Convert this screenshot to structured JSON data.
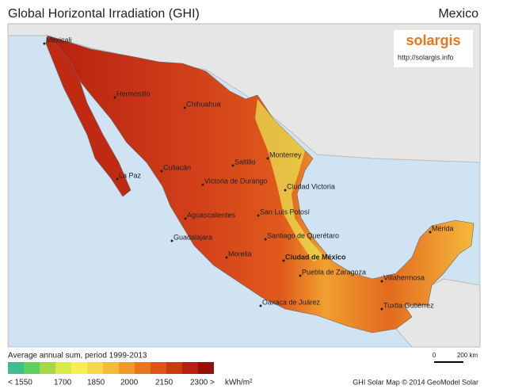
{
  "header": {
    "title": "Global Horizontal Irradiation (GHI)",
    "country": "Mexico"
  },
  "logo": {
    "brand": "solargis",
    "url": "http://solargis.info"
  },
  "cities": [
    "Mexicali",
    "Hermosillo",
    "Chihuahua",
    "Monterrey",
    "Saltillo",
    "Culiacán",
    "La Paz",
    "Victoria de Durango",
    "Ciudad Victoria",
    "San Luis Potosí",
    "Aguascalientes",
    "Guadalajara",
    "Santiago de Querétaro",
    "Mérida",
    "Ciudad de México",
    "Morelia",
    "Puebla de Zaragoza",
    "Villahermosa",
    "Oaxaca de Juárez",
    "Tuxtla Gutiérrez"
  ],
  "scale_bar": {
    "start": "0",
    "end": "200 km"
  },
  "legend": {
    "caption": "Average annual sum, period 1999-2013",
    "colors": [
      "#3dbf8a",
      "#5fcf5f",
      "#a6d94a",
      "#d9e84a",
      "#f5f050",
      "#f7d84a",
      "#f5b93b",
      "#f09a2b",
      "#e8761f",
      "#dd5518",
      "#cc3a12",
      "#b52010",
      "#951008"
    ],
    "labels": [
      "< 1550",
      "1700",
      "1850",
      "2000",
      "2150",
      "2300 >"
    ],
    "unit": "kWh/m²"
  },
  "credit": "GHI Solar Map © 2014 GeoModel Solar"
}
